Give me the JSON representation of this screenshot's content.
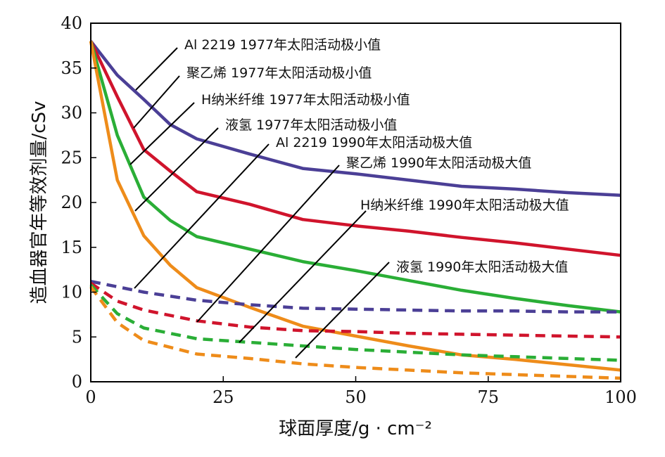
{
  "chart_data": {
    "type": "line",
    "xlabel": "球面厚度/g · cm⁻²",
    "ylabel": "造血器官年等效剂量/cSv",
    "xlim": [
      0,
      100
    ],
    "ylim": [
      0,
      40
    ],
    "xticks": [
      0,
      25,
      50,
      75,
      100
    ],
    "yticks": [
      0,
      5,
      10,
      15,
      20,
      25,
      30,
      35,
      40
    ],
    "grid": false,
    "legend": "none (leader-line annotations)",
    "series": [
      {
        "name": "Al 2219  1977年太阳活动极小值",
        "color": "#4b3f96",
        "style": "solid",
        "x": [
          0,
          5,
          10,
          15,
          20,
          30,
          40,
          50,
          60,
          70,
          80,
          90,
          100
        ],
        "y": [
          38,
          34.2,
          31.5,
          28.7,
          27.1,
          25.4,
          23.8,
          23.2,
          22.5,
          21.8,
          21.5,
          21.1,
          20.8
        ]
      },
      {
        "name": "聚乙烯  1977年太阳活动极小值",
        "color": "#d0142c",
        "style": "solid",
        "x": [
          0,
          5,
          10,
          15,
          20,
          30,
          40,
          50,
          60,
          70,
          80,
          90,
          100
        ],
        "y": [
          38,
          31.8,
          25.9,
          23.5,
          21.2,
          19.8,
          18.1,
          17.4,
          16.8,
          16.1,
          15.5,
          14.8,
          14.1
        ]
      },
      {
        "name": "H纳米纤维  1977年太阳活动极小值",
        "color": "#2aae36",
        "style": "solid",
        "x": [
          0,
          5,
          10,
          15,
          20,
          30,
          40,
          50,
          60,
          70,
          80,
          90,
          100
        ],
        "y": [
          38,
          27.5,
          20.6,
          18.0,
          16.2,
          14.8,
          13.4,
          12.4,
          11.3,
          10.2,
          9.3,
          8.5,
          7.8
        ]
      },
      {
        "name": "液氢 1977年太阳活动极小值",
        "color": "#ee8c1a",
        "style": "solid",
        "x": [
          0,
          5,
          10,
          15,
          20,
          30,
          40,
          50,
          60,
          70,
          80,
          90,
          100
        ],
        "y": [
          38,
          22.5,
          16.3,
          13.0,
          10.5,
          8.3,
          6.2,
          5.1,
          4.0,
          3.0,
          2.5,
          1.9,
          1.3
        ]
      },
      {
        "name": "Al 2219  1990年太阳活动极大值",
        "color": "#4b3f96",
        "style": "dashed",
        "x": [
          0,
          5,
          10,
          20,
          30,
          40,
          50,
          60,
          70,
          80,
          90,
          100
        ],
        "y": [
          11.2,
          10.6,
          10.0,
          9.1,
          8.6,
          8.2,
          8.1,
          8.0,
          7.9,
          7.9,
          7.8,
          7.8
        ]
      },
      {
        "name": "聚乙烯  1990年太阳活动极大值",
        "color": "#d0142c",
        "style": "dashed",
        "x": [
          0,
          5,
          10,
          20,
          30,
          40,
          50,
          60,
          70,
          80,
          90,
          100
        ],
        "y": [
          11.0,
          9.0,
          8.0,
          6.8,
          6.1,
          5.7,
          5.6,
          5.4,
          5.3,
          5.2,
          5.1,
          5.0
        ]
      },
      {
        "name": "H纳米纤维  1990年太阳活动极大值",
        "color": "#2aae36",
        "style": "dashed",
        "x": [
          0,
          5,
          10,
          20,
          30,
          40,
          50,
          60,
          70,
          80,
          90,
          100
        ],
        "y": [
          10.8,
          7.6,
          6.0,
          4.8,
          4.4,
          4.0,
          3.6,
          3.3,
          3.0,
          2.8,
          2.6,
          2.4
        ]
      },
      {
        "name": "液氢  1990年太阳活动极大值",
        "color": "#ee8c1a",
        "style": "dashed",
        "x": [
          0,
          5,
          10,
          20,
          30,
          40,
          50,
          60,
          70,
          80,
          90,
          100
        ],
        "y": [
          10.6,
          6.6,
          4.6,
          3.1,
          2.6,
          2.0,
          1.6,
          1.3,
          1.0,
          0.8,
          0.6,
          0.4
        ]
      }
    ],
    "annotations": [
      {
        "text": "Al 2219  1977年太阳活动极小值"
      },
      {
        "text": "聚乙烯  1977年太阳活动极小值"
      },
      {
        "text": "H纳米纤维  1977年太阳活动极小值"
      },
      {
        "text": "液氢 1977年太阳活动极小值"
      },
      {
        "text": "Al 2219  1990年太阳活动极大值"
      },
      {
        "text": "聚乙烯  1990年太阳活动极大值"
      },
      {
        "text": "H纳米纤维  1990年太阳活动极大值"
      },
      {
        "text": "液氢  1990年太阳活动极大值"
      }
    ]
  }
}
